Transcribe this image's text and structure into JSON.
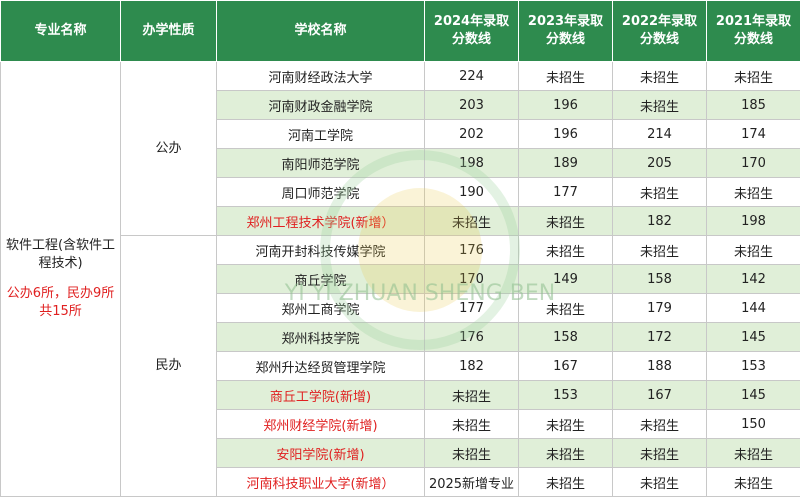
{
  "header": {
    "col_major": "专业名称",
    "col_type": "办学性质",
    "col_school": "学校名称",
    "col_2024": "2024年录取\n分数线",
    "col_2023": "2023年录取\n分数线",
    "col_2022": "2022年录取\n分数线",
    "col_2021": "2021年录取\n分数线"
  },
  "major": {
    "name": "软件工程(含软件工程技术)",
    "count": "公办6所，民办9所共15所"
  },
  "types": {
    "public": "公办",
    "private": "民办"
  },
  "rows": [
    {
      "school": "河南财经政法大学",
      "y2024": "224",
      "y2023": "未招生",
      "y2022": "未招生",
      "y2021": "未招生",
      "new": false
    },
    {
      "school": "河南财政金融学院",
      "y2024": "203",
      "y2023": "196",
      "y2022": "未招生",
      "y2021": "185",
      "new": false
    },
    {
      "school": "河南工学院",
      "y2024": "202",
      "y2023": "196",
      "y2022": "214",
      "y2021": "174",
      "new": false
    },
    {
      "school": "南阳师范学院",
      "y2024": "198",
      "y2023": "189",
      "y2022": "205",
      "y2021": "170",
      "new": false
    },
    {
      "school": "周口师范学院",
      "y2024": "190",
      "y2023": "177",
      "y2022": "未招生",
      "y2021": "未招生",
      "new": false
    },
    {
      "school": "郑州工程技术学院(新增）",
      "y2024": "未招生",
      "y2023": "未招生",
      "y2022": "182",
      "y2021": "198",
      "new": true
    },
    {
      "school": "河南开封科技传媒学院",
      "y2024": "176",
      "y2023": "未招生",
      "y2022": "未招生",
      "y2021": "未招生",
      "new": false
    },
    {
      "school": "商丘学院",
      "y2024": "170",
      "y2023": "149",
      "y2022": "158",
      "y2021": "142",
      "new": false
    },
    {
      "school": "郑州工商学院",
      "y2024": "177",
      "y2023": "未招生",
      "y2022": "179",
      "y2021": "144",
      "new": false
    },
    {
      "school": "郑州科技学院",
      "y2024": "176",
      "y2023": "158",
      "y2022": "172",
      "y2021": "145",
      "new": false
    },
    {
      "school": "郑州升达经贸管理学院",
      "y2024": "182",
      "y2023": "167",
      "y2022": "188",
      "y2021": "153",
      "new": false
    },
    {
      "school": "商丘工学院(新增)",
      "y2024": "未招生",
      "y2023": "153",
      "y2022": "167",
      "y2021": "145",
      "new": true
    },
    {
      "school": "郑州财经学院(新增)",
      "y2024": "未招生",
      "y2023": "未招生",
      "y2022": "未招生",
      "y2021": "150",
      "new": true
    },
    {
      "school": "安阳学院(新增)",
      "y2024": "未招生",
      "y2023": "未招生",
      "y2022": "未招生",
      "y2021": "未招生",
      "new": true
    },
    {
      "school": "河南科技职业大学(新增）",
      "y2024": "2025新增专业",
      "y2023": "未招生",
      "y2022": "未招生",
      "y2021": "未招生",
      "new": true
    }
  ],
  "watermark": {
    "text": "YI YI ZHUAN SHENG BEN",
    "icon": "watermark-logo-icon",
    "color": "#9ccf9a"
  },
  "colors": {
    "header_bg": "#2e8b4e",
    "stripe": "#e0efd8",
    "new_text": "#e02020"
  }
}
